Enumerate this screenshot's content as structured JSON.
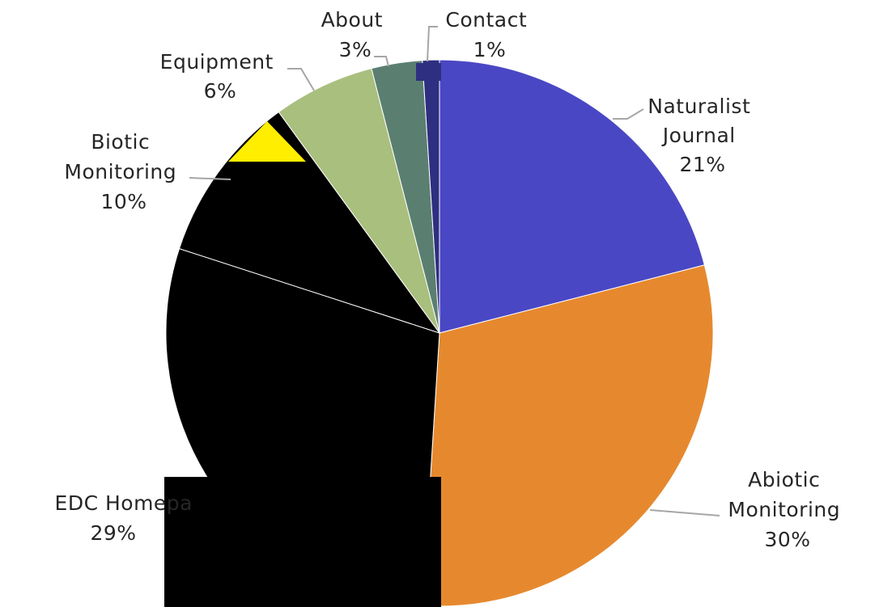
{
  "chart_data": {
    "type": "pie",
    "title": "",
    "slices": [
      {
        "label": "Naturalist Journal",
        "lines": [
          "Naturalist",
          "Journal"
        ],
        "pct_label": "21%",
        "value": 21,
        "color": "#4a47c4"
      },
      {
        "label": "Abiotic Monitoring",
        "lines": [
          "Abiotic",
          "Monitoring"
        ],
        "pct_label": "30%",
        "value": 30,
        "color": "#e6892e"
      },
      {
        "label": "EDC Homepage",
        "lines": [
          "EDC Homepa"
        ],
        "pct_label": "29%",
        "value": 29,
        "color": "#000000"
      },
      {
        "label": "Biotic Monitoring",
        "lines": [
          "Biotic",
          "Monitoring"
        ],
        "pct_label": "10%",
        "value": 10,
        "color": "#000000"
      },
      {
        "label": "Equipment",
        "lines": [
          "Equipment"
        ],
        "pct_label": "6%",
        "value": 6,
        "color": "#a9bf7e"
      },
      {
        "label": "About",
        "lines": [
          "About"
        ],
        "pct_label": "3%",
        "value": 3,
        "color": "#5a7f70"
      },
      {
        "label": "Contact",
        "lines": [
          "Contact"
        ],
        "pct_label": "1%",
        "value": 1,
        "color": "#2e2f80"
      }
    ],
    "start_angle_deg": 0,
    "direction": "clockwise",
    "legend": "none",
    "data_labels": "outside-with-leader-lines"
  }
}
